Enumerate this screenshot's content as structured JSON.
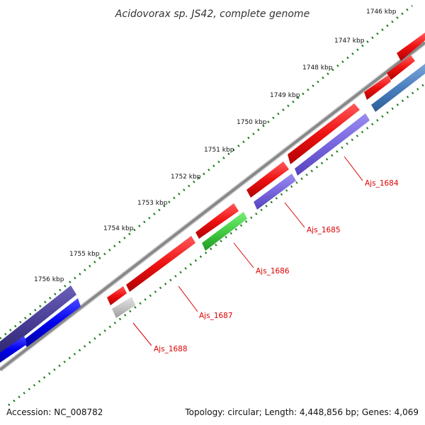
{
  "header": {
    "title": "Acidovorax sp. JS42, complete genome"
  },
  "footer": {
    "accession": "Accession: NC_008782",
    "summary": "Topology: circular; Length: 4,448,856 bp; Genes: 4,069"
  },
  "scale": {
    "ticks": [
      {
        "label": "1746 kbp"
      },
      {
        "label": "1747 kbp"
      },
      {
        "label": "1748 kbp"
      },
      {
        "label": "1749 kbp"
      },
      {
        "label": "1750 kbp"
      },
      {
        "label": "1751 kbp"
      },
      {
        "label": "1752 kbp"
      },
      {
        "label": "1753 kbp"
      },
      {
        "label": "1754 kbp"
      },
      {
        "label": "1755 kbp"
      },
      {
        "label": "1756 kbp"
      }
    ]
  },
  "genes": [
    {
      "name": "Ajs_1684",
      "color": "#7766dd"
    },
    {
      "name": "Ajs_1685",
      "color": "#7766dd"
    },
    {
      "name": "Ajs_1686",
      "color": "#44cc44"
    },
    {
      "name": "Ajs_1687",
      "color": "#ee1111"
    },
    {
      "name": "Ajs_1688",
      "color": "#bbbbbb"
    }
  ],
  "colors": {
    "forward_gene": "#ee1111",
    "backbone": "#888888",
    "tick_dots": "#1a7a1a",
    "label_text": "#dd0000",
    "leader_line": "#dd0000"
  }
}
